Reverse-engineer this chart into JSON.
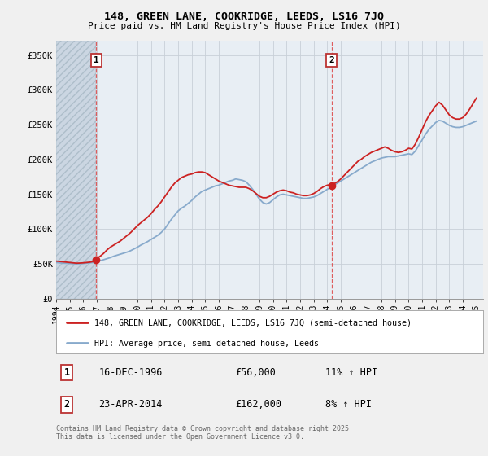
{
  "title": "148, GREEN LANE, COOKRIDGE, LEEDS, LS16 7JQ",
  "subtitle": "Price paid vs. HM Land Registry's House Price Index (HPI)",
  "ylim": [
    0,
    370000
  ],
  "xlim_start": 1994.0,
  "xlim_end": 2025.5,
  "yticks": [
    0,
    50000,
    100000,
    150000,
    200000,
    250000,
    300000,
    350000
  ],
  "ytick_labels": [
    "£0",
    "£50K",
    "£100K",
    "£150K",
    "£200K",
    "£250K",
    "£300K",
    "£350K"
  ],
  "xticks": [
    1994,
    1995,
    1996,
    1997,
    1998,
    1999,
    2000,
    2001,
    2002,
    2003,
    2004,
    2005,
    2006,
    2007,
    2008,
    2009,
    2010,
    2011,
    2012,
    2013,
    2014,
    2015,
    2016,
    2017,
    2018,
    2019,
    2020,
    2021,
    2022,
    2023,
    2024,
    2025
  ],
  "transaction1_x": 1996.96,
  "transaction1_y": 56000,
  "transaction1_label": "1",
  "transaction2_x": 2014.31,
  "transaction2_y": 162000,
  "transaction2_label": "2",
  "legend_line1": "148, GREEN LANE, COOKRIDGE, LEEDS, LS16 7JQ (semi-detached house)",
  "legend_line2": "HPI: Average price, semi-detached house, Leeds",
  "note1_label": "1",
  "note1_date": "16-DEC-1996",
  "note1_price": "£56,000",
  "note1_hpi": "11% ↑ HPI",
  "note2_label": "2",
  "note2_date": "23-APR-2014",
  "note2_price": "£162,000",
  "note2_hpi": "8% ↑ HPI",
  "footer": "Contains HM Land Registry data © Crown copyright and database right 2025.\nThis data is licensed under the Open Government Licence v3.0.",
  "line_color_red": "#cc2222",
  "line_color_blue": "#88aacc",
  "bg_color": "#f0f0f0",
  "plot_bg": "#e8eef4",
  "hatch_color": "#c8d4e0",
  "vline_color": "#dd4444",
  "hpi_data": [
    [
      1994.0,
      52000
    ],
    [
      1994.25,
      51500
    ],
    [
      1994.5,
      51000
    ],
    [
      1994.75,
      50800
    ],
    [
      1995.0,
      50500
    ],
    [
      1995.25,
      50200
    ],
    [
      1995.5,
      50000
    ],
    [
      1995.75,
      50200
    ],
    [
      1996.0,
      50500
    ],
    [
      1996.25,
      51000
    ],
    [
      1996.5,
      51500
    ],
    [
      1996.75,
      52000
    ],
    [
      1997.0,
      53000
    ],
    [
      1997.25,
      54500
    ],
    [
      1997.5,
      56000
    ],
    [
      1997.75,
      57500
    ],
    [
      1998.0,
      59000
    ],
    [
      1998.25,
      61000
    ],
    [
      1998.5,
      62500
    ],
    [
      1998.75,
      64000
    ],
    [
      1999.0,
      65500
    ],
    [
      1999.25,
      67000
    ],
    [
      1999.5,
      69000
    ],
    [
      1999.75,
      71500
    ],
    [
      2000.0,
      74000
    ],
    [
      2000.25,
      77000
    ],
    [
      2000.5,
      79500
    ],
    [
      2000.75,
      82000
    ],
    [
      2001.0,
      85000
    ],
    [
      2001.25,
      88000
    ],
    [
      2001.5,
      91000
    ],
    [
      2001.75,
      95000
    ],
    [
      2002.0,
      100000
    ],
    [
      2002.25,
      107000
    ],
    [
      2002.5,
      114000
    ],
    [
      2002.75,
      120000
    ],
    [
      2003.0,
      126000
    ],
    [
      2003.25,
      130000
    ],
    [
      2003.5,
      133000
    ],
    [
      2003.75,
      137000
    ],
    [
      2004.0,
      141000
    ],
    [
      2004.25,
      146000
    ],
    [
      2004.5,
      150000
    ],
    [
      2004.75,
      154000
    ],
    [
      2005.0,
      156000
    ],
    [
      2005.25,
      158000
    ],
    [
      2005.5,
      160000
    ],
    [
      2005.75,
      162000
    ],
    [
      2006.0,
      163000
    ],
    [
      2006.25,
      165000
    ],
    [
      2006.5,
      167000
    ],
    [
      2006.75,
      169000
    ],
    [
      2007.0,
      170000
    ],
    [
      2007.25,
      172000
    ],
    [
      2007.5,
      171000
    ],
    [
      2007.75,
      170000
    ],
    [
      2008.0,
      168000
    ],
    [
      2008.25,
      163000
    ],
    [
      2008.5,
      157000
    ],
    [
      2008.75,
      150000
    ],
    [
      2009.0,
      143000
    ],
    [
      2009.25,
      138000
    ],
    [
      2009.5,
      136000
    ],
    [
      2009.75,
      138000
    ],
    [
      2010.0,
      142000
    ],
    [
      2010.25,
      146000
    ],
    [
      2010.5,
      149000
    ],
    [
      2010.75,
      150000
    ],
    [
      2011.0,
      149000
    ],
    [
      2011.25,
      148000
    ],
    [
      2011.5,
      147000
    ],
    [
      2011.75,
      146000
    ],
    [
      2012.0,
      145000
    ],
    [
      2012.25,
      144000
    ],
    [
      2012.5,
      144000
    ],
    [
      2012.75,
      145000
    ],
    [
      2013.0,
      146000
    ],
    [
      2013.25,
      148000
    ],
    [
      2013.5,
      151000
    ],
    [
      2013.75,
      154000
    ],
    [
      2014.0,
      157000
    ],
    [
      2014.25,
      160000
    ],
    [
      2014.5,
      163000
    ],
    [
      2014.75,
      166000
    ],
    [
      2015.0,
      169000
    ],
    [
      2015.25,
      172000
    ],
    [
      2015.5,
      175000
    ],
    [
      2015.75,
      178000
    ],
    [
      2016.0,
      181000
    ],
    [
      2016.25,
      184000
    ],
    [
      2016.5,
      187000
    ],
    [
      2016.75,
      190000
    ],
    [
      2017.0,
      193000
    ],
    [
      2017.25,
      196000
    ],
    [
      2017.5,
      198000
    ],
    [
      2017.75,
      200000
    ],
    [
      2018.0,
      202000
    ],
    [
      2018.25,
      203000
    ],
    [
      2018.5,
      204000
    ],
    [
      2018.75,
      204000
    ],
    [
      2019.0,
      204000
    ],
    [
      2019.25,
      205000
    ],
    [
      2019.5,
      206000
    ],
    [
      2019.75,
      207000
    ],
    [
      2020.0,
      208000
    ],
    [
      2020.25,
      207000
    ],
    [
      2020.5,
      212000
    ],
    [
      2020.75,
      220000
    ],
    [
      2021.0,
      228000
    ],
    [
      2021.25,
      236000
    ],
    [
      2021.5,
      243000
    ],
    [
      2021.75,
      248000
    ],
    [
      2022.0,
      253000
    ],
    [
      2022.25,
      256000
    ],
    [
      2022.5,
      255000
    ],
    [
      2022.75,
      252000
    ],
    [
      2023.0,
      249000
    ],
    [
      2023.25,
      247000
    ],
    [
      2023.5,
      246000
    ],
    [
      2023.75,
      246000
    ],
    [
      2024.0,
      247000
    ],
    [
      2024.25,
      249000
    ],
    [
      2024.5,
      251000
    ],
    [
      2024.75,
      253000
    ],
    [
      2025.0,
      255000
    ]
  ],
  "price_data": [
    [
      1994.0,
      54000
    ],
    [
      1994.25,
      53500
    ],
    [
      1994.5,
      53000
    ],
    [
      1994.75,
      52500
    ],
    [
      1995.0,
      52000
    ],
    [
      1995.25,
      51500
    ],
    [
      1995.5,
      51000
    ],
    [
      1995.75,
      51200
    ],
    [
      1996.0,
      51500
    ],
    [
      1996.25,
      52000
    ],
    [
      1996.5,
      52500
    ],
    [
      1996.75,
      53500
    ],
    [
      1996.96,
      56000
    ],
    [
      1997.0,
      58000
    ],
    [
      1997.25,
      61000
    ],
    [
      1997.5,
      65000
    ],
    [
      1997.75,
      70000
    ],
    [
      1998.0,
      74000
    ],
    [
      1998.25,
      77000
    ],
    [
      1998.5,
      80000
    ],
    [
      1998.75,
      83000
    ],
    [
      1999.0,
      87000
    ],
    [
      1999.25,
      91000
    ],
    [
      1999.5,
      95000
    ],
    [
      1999.75,
      100000
    ],
    [
      2000.0,
      105000
    ],
    [
      2000.25,
      109000
    ],
    [
      2000.5,
      113000
    ],
    [
      2000.75,
      117000
    ],
    [
      2001.0,
      122000
    ],
    [
      2001.25,
      128000
    ],
    [
      2001.5,
      133000
    ],
    [
      2001.75,
      139000
    ],
    [
      2002.0,
      146000
    ],
    [
      2002.25,
      153000
    ],
    [
      2002.5,
      160000
    ],
    [
      2002.75,
      166000
    ],
    [
      2003.0,
      170000
    ],
    [
      2003.25,
      174000
    ],
    [
      2003.5,
      176000
    ],
    [
      2003.75,
      178000
    ],
    [
      2004.0,
      179000
    ],
    [
      2004.25,
      181000
    ],
    [
      2004.5,
      182000
    ],
    [
      2004.75,
      182000
    ],
    [
      2005.0,
      181000
    ],
    [
      2005.25,
      178000
    ],
    [
      2005.5,
      175000
    ],
    [
      2005.75,
      172000
    ],
    [
      2006.0,
      169000
    ],
    [
      2006.25,
      167000
    ],
    [
      2006.5,
      165000
    ],
    [
      2006.75,
      163000
    ],
    [
      2007.0,
      162000
    ],
    [
      2007.25,
      161000
    ],
    [
      2007.5,
      160000
    ],
    [
      2007.75,
      160000
    ],
    [
      2008.0,
      160000
    ],
    [
      2008.25,
      158000
    ],
    [
      2008.5,
      155000
    ],
    [
      2008.75,
      151000
    ],
    [
      2009.0,
      147000
    ],
    [
      2009.25,
      145000
    ],
    [
      2009.5,
      145000
    ],
    [
      2009.75,
      147000
    ],
    [
      2010.0,
      150000
    ],
    [
      2010.25,
      153000
    ],
    [
      2010.5,
      155000
    ],
    [
      2010.75,
      156000
    ],
    [
      2011.0,
      155000
    ],
    [
      2011.25,
      153000
    ],
    [
      2011.5,
      152000
    ],
    [
      2011.75,
      150000
    ],
    [
      2012.0,
      149000
    ],
    [
      2012.25,
      148000
    ],
    [
      2012.5,
      148000
    ],
    [
      2012.75,
      149000
    ],
    [
      2013.0,
      151000
    ],
    [
      2013.25,
      154000
    ],
    [
      2013.5,
      158000
    ],
    [
      2013.75,
      161000
    ],
    [
      2014.0,
      163000
    ],
    [
      2014.25,
      164000
    ],
    [
      2014.31,
      162000
    ],
    [
      2014.5,
      165000
    ],
    [
      2014.75,
      168000
    ],
    [
      2015.0,
      172000
    ],
    [
      2015.25,
      177000
    ],
    [
      2015.5,
      182000
    ],
    [
      2015.75,
      187000
    ],
    [
      2016.0,
      192000
    ],
    [
      2016.25,
      197000
    ],
    [
      2016.5,
      200000
    ],
    [
      2016.75,
      204000
    ],
    [
      2017.0,
      207000
    ],
    [
      2017.25,
      210000
    ],
    [
      2017.5,
      212000
    ],
    [
      2017.75,
      214000
    ],
    [
      2018.0,
      216000
    ],
    [
      2018.25,
      218000
    ],
    [
      2018.5,
      216000
    ],
    [
      2018.75,
      213000
    ],
    [
      2019.0,
      211000
    ],
    [
      2019.25,
      210000
    ],
    [
      2019.5,
      211000
    ],
    [
      2019.75,
      213000
    ],
    [
      2020.0,
      216000
    ],
    [
      2020.25,
      215000
    ],
    [
      2020.5,
      222000
    ],
    [
      2020.75,
      232000
    ],
    [
      2021.0,
      243000
    ],
    [
      2021.25,
      254000
    ],
    [
      2021.5,
      263000
    ],
    [
      2021.75,
      270000
    ],
    [
      2022.0,
      277000
    ],
    [
      2022.25,
      282000
    ],
    [
      2022.5,
      278000
    ],
    [
      2022.75,
      271000
    ],
    [
      2023.0,
      264000
    ],
    [
      2023.25,
      260000
    ],
    [
      2023.5,
      258000
    ],
    [
      2023.75,
      258000
    ],
    [
      2024.0,
      260000
    ],
    [
      2024.25,
      265000
    ],
    [
      2024.5,
      272000
    ],
    [
      2024.75,
      280000
    ],
    [
      2025.0,
      288000
    ]
  ]
}
